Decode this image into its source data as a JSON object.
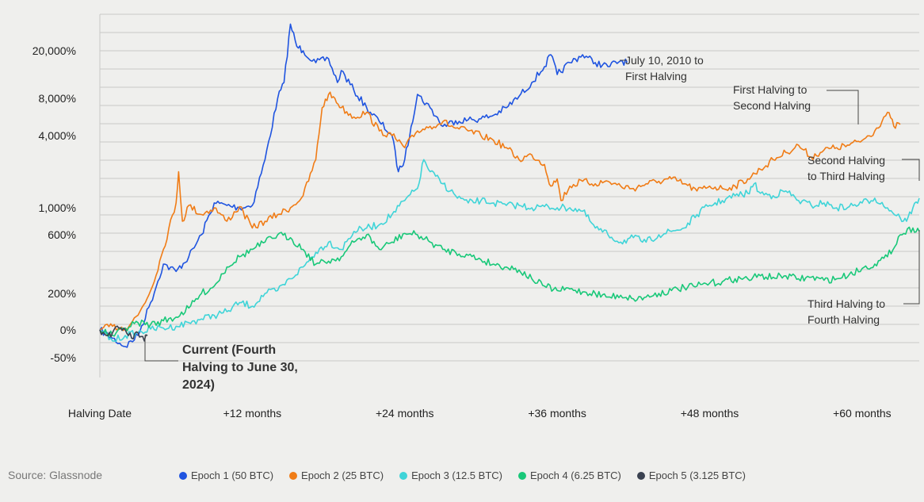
{
  "source": "Source: Glassnode",
  "chart_data": {
    "type": "line",
    "title": "",
    "xlabel": "",
    "ylabel": "",
    "x_unit": "months since halving",
    "xlim": [
      0,
      64.5
    ],
    "x_ticks": [
      {
        "value": 0,
        "label": "Halving Date"
      },
      {
        "value": 12,
        "label": "+12 months"
      },
      {
        "value": 24,
        "label": "+24 months"
      },
      {
        "value": 36,
        "label": "+36 months"
      },
      {
        "value": 48,
        "label": "+48 months"
      },
      {
        "value": 60,
        "label": "+60 months"
      }
    ],
    "y_scale": "log (return %, nonlinear)",
    "y_ticks": [
      {
        "value": 20000,
        "label": "20,000%"
      },
      {
        "value": 8000,
        "label": "8,000%"
      },
      {
        "value": 4000,
        "label": "4,000%"
      },
      {
        "value": 1000,
        "label": "1,000%"
      },
      {
        "value": 600,
        "label": "600%"
      },
      {
        "value": 200,
        "label": "200%"
      },
      {
        "value": 0,
        "label": "0%"
      },
      {
        "value": -50,
        "label": "-50%"
      }
    ],
    "grid": true,
    "legend_position": "bottom",
    "series": [
      {
        "name": "Epoch 1 (50 BTC)",
        "color": "#1f54e0",
        "points": [
          [
            0,
            0
          ],
          [
            1,
            -15
          ],
          [
            2,
            -30
          ],
          [
            3,
            -10
          ],
          [
            4,
            150
          ],
          [
            5,
            400
          ],
          [
            6,
            350
          ],
          [
            7,
            450
          ],
          [
            8,
            600
          ],
          [
            9,
            1200
          ],
          [
            10,
            1100
          ],
          [
            11,
            1000
          ],
          [
            12,
            1100
          ],
          [
            13,
            3000
          ],
          [
            14,
            8000
          ],
          [
            14.5,
            12000
          ],
          [
            15,
            32000
          ],
          [
            15.5,
            22000
          ],
          [
            16,
            20000
          ],
          [
            17,
            17000
          ],
          [
            18,
            18000
          ],
          [
            18.7,
            12000
          ],
          [
            19,
            15000
          ],
          [
            20,
            10000
          ],
          [
            21,
            7000
          ],
          [
            22,
            5500
          ],
          [
            23,
            4000
          ],
          [
            23.5,
            2500
          ],
          [
            24,
            3000
          ],
          [
            24.5,
            5000
          ],
          [
            25,
            9000
          ],
          [
            26,
            7000
          ],
          [
            27,
            5000
          ],
          [
            28,
            5600
          ],
          [
            29,
            5700
          ],
          [
            30,
            5800
          ],
          [
            31,
            6200
          ],
          [
            32,
            7000
          ],
          [
            33,
            8500
          ],
          [
            34,
            12000
          ],
          [
            35,
            16000
          ],
          [
            35.5,
            19000
          ],
          [
            36,
            14000
          ],
          [
            37,
            17000
          ],
          [
            38,
            19000
          ],
          [
            39,
            17000
          ],
          [
            40,
            16000
          ],
          [
            41,
            17500
          ],
          [
            41.5,
            17000
          ]
        ]
      },
      {
        "name": "Epoch 2 (25 BTC)",
        "color": "#f07c16",
        "points": [
          [
            0,
            0
          ],
          [
            1,
            20
          ],
          [
            2,
            10
          ],
          [
            3,
            80
          ],
          [
            4,
            220
          ],
          [
            5,
            500
          ],
          [
            6,
            1200
          ],
          [
            6.2,
            2500
          ],
          [
            6.5,
            800
          ],
          [
            7,
            1100
          ],
          [
            8,
            900
          ],
          [
            9,
            1000
          ],
          [
            10,
            800
          ],
          [
            11,
            1050
          ],
          [
            12,
            700
          ],
          [
            13,
            800
          ],
          [
            14,
            900
          ],
          [
            15,
            1000
          ],
          [
            16,
            1500
          ],
          [
            17,
            3000
          ],
          [
            17.5,
            7000
          ],
          [
            18,
            9000
          ],
          [
            18.5,
            8000
          ],
          [
            19,
            7000
          ],
          [
            20,
            6000
          ],
          [
            21,
            6500
          ],
          [
            22,
            4500
          ],
          [
            23,
            4000
          ],
          [
            24,
            3500
          ],
          [
            25,
            4500
          ],
          [
            26,
            5000
          ],
          [
            27,
            5500
          ],
          [
            28,
            4800
          ],
          [
            29,
            4500
          ],
          [
            30,
            4000
          ],
          [
            31,
            3800
          ],
          [
            32,
            3500
          ],
          [
            33,
            3000
          ],
          [
            34,
            3200
          ],
          [
            35,
            2800
          ],
          [
            35.5,
            1900
          ],
          [
            36,
            2200
          ],
          [
            36.3,
            1300
          ],
          [
            37,
            1900
          ],
          [
            38,
            2100
          ],
          [
            39,
            2000
          ],
          [
            40,
            2100
          ],
          [
            41,
            1900
          ],
          [
            42,
            1800
          ],
          [
            43,
            2000
          ],
          [
            44,
            2100
          ],
          [
            45,
            2200
          ],
          [
            46,
            2000
          ],
          [
            47,
            1700
          ],
          [
            48,
            1900
          ],
          [
            49,
            1800
          ],
          [
            50,
            1900
          ],
          [
            51,
            2200
          ],
          [
            52,
            2600
          ],
          [
            53,
            3000
          ],
          [
            54,
            3300
          ],
          [
            55,
            3600
          ],
          [
            56,
            3100
          ],
          [
            57,
            3400
          ],
          [
            58,
            3500
          ],
          [
            59,
            3600
          ],
          [
            60,
            3800
          ],
          [
            61,
            4500
          ],
          [
            62,
            6500
          ],
          [
            62.5,
            5000
          ],
          [
            63,
            5200
          ]
        ]
      },
      {
        "name": "Epoch 3 (12.5 BTC)",
        "color": "#3fd4d8",
        "points": [
          [
            0,
            0
          ],
          [
            1,
            -20
          ],
          [
            2,
            -10
          ],
          [
            3,
            -5
          ],
          [
            4,
            5
          ],
          [
            5,
            10
          ],
          [
            6,
            20
          ],
          [
            7,
            40
          ],
          [
            8,
            60
          ],
          [
            9,
            80
          ],
          [
            10,
            100
          ],
          [
            11,
            150
          ],
          [
            12,
            130
          ],
          [
            13,
            200
          ],
          [
            14,
            220
          ],
          [
            15,
            300
          ],
          [
            16,
            380
          ],
          [
            17,
            480
          ],
          [
            18,
            550
          ],
          [
            19,
            500
          ],
          [
            20,
            650
          ],
          [
            21,
            700
          ],
          [
            22,
            750
          ],
          [
            23,
            900
          ],
          [
            24,
            1300
          ],
          [
            25,
            1800
          ],
          [
            25.5,
            3000
          ],
          [
            26,
            2500
          ],
          [
            27,
            2000
          ],
          [
            28,
            1500
          ],
          [
            29,
            1200
          ],
          [
            30,
            1300
          ],
          [
            31,
            1200
          ],
          [
            32,
            1100
          ],
          [
            33,
            1100
          ],
          [
            34,
            1000
          ],
          [
            35,
            1050
          ],
          [
            36,
            1000
          ],
          [
            37,
            1000
          ],
          [
            38,
            950
          ],
          [
            39,
            700
          ],
          [
            40,
            600
          ],
          [
            41,
            550
          ],
          [
            42,
            580
          ],
          [
            43,
            550
          ],
          [
            44,
            600
          ],
          [
            45,
            650
          ],
          [
            46,
            700
          ],
          [
            47,
            900
          ],
          [
            48,
            1100
          ],
          [
            49,
            1300
          ],
          [
            50,
            1500
          ],
          [
            51,
            1600
          ],
          [
            51.5,
            2000
          ],
          [
            52,
            1600
          ],
          [
            53,
            1500
          ],
          [
            54,
            1700
          ],
          [
            55,
            1300
          ],
          [
            56,
            1100
          ],
          [
            57,
            1200
          ],
          [
            58,
            1000
          ],
          [
            59,
            1050
          ],
          [
            60,
            1200
          ],
          [
            61,
            1400
          ],
          [
            62,
            1000
          ],
          [
            63,
            850
          ],
          [
            63.5,
            800
          ],
          [
            64,
            1000
          ],
          [
            64.5,
            1400
          ]
        ]
      },
      {
        "name": "Epoch 4 (6.25 BTC)",
        "color": "#19c879",
        "points": [
          [
            0,
            0
          ],
          [
            1,
            -10
          ],
          [
            2,
            10
          ],
          [
            3,
            40
          ],
          [
            4,
            30
          ],
          [
            5,
            50
          ],
          [
            6,
            70
          ],
          [
            7,
            120
          ],
          [
            8,
            200
          ],
          [
            9,
            250
          ],
          [
            10,
            380
          ],
          [
            11,
            450
          ],
          [
            12,
            500
          ],
          [
            13,
            550
          ],
          [
            14,
            600
          ],
          [
            15,
            580
          ],
          [
            16,
            500
          ],
          [
            17,
            400
          ],
          [
            18,
            420
          ],
          [
            19,
            450
          ],
          [
            20,
            550
          ],
          [
            21,
            600
          ],
          [
            22,
            500
          ],
          [
            23,
            550
          ],
          [
            24,
            620
          ],
          [
            25,
            600
          ],
          [
            26,
            550
          ],
          [
            27,
            500
          ],
          [
            28,
            480
          ],
          [
            29,
            460
          ],
          [
            30,
            430
          ],
          [
            31,
            400
          ],
          [
            32,
            380
          ],
          [
            33,
            360
          ],
          [
            34,
            300
          ],
          [
            35,
            250
          ],
          [
            36,
            220
          ],
          [
            37,
            230
          ],
          [
            38,
            210
          ],
          [
            39,
            200
          ],
          [
            40,
            180
          ],
          [
            41,
            190
          ],
          [
            42,
            170
          ],
          [
            43,
            180
          ],
          [
            44,
            200
          ],
          [
            45,
            220
          ],
          [
            46,
            240
          ],
          [
            47,
            250
          ],
          [
            48,
            270
          ],
          [
            49,
            280
          ],
          [
            50,
            300
          ],
          [
            51,
            300
          ],
          [
            52,
            320
          ],
          [
            53,
            310
          ],
          [
            54,
            320
          ],
          [
            55,
            300
          ],
          [
            56,
            310
          ],
          [
            57,
            290
          ],
          [
            58,
            300
          ],
          [
            59,
            330
          ],
          [
            60,
            370
          ],
          [
            61,
            400
          ],
          [
            62,
            450
          ],
          [
            63,
            600
          ],
          [
            64,
            700
          ],
          [
            64.5,
            650
          ]
        ]
      },
      {
        "name": "Epoch 5 (3.125 BTC)",
        "color": "#3a4150",
        "points": [
          [
            0,
            0
          ],
          [
            0.5,
            -10
          ],
          [
            1,
            -5
          ],
          [
            1.5,
            10
          ],
          [
            2,
            0
          ],
          [
            2.5,
            -15
          ],
          [
            3,
            -5
          ],
          [
            3.5,
            -20
          ],
          [
            3.75,
            -10
          ]
        ]
      }
    ],
    "annotations": [
      {
        "text": "July 10, 2010 to First Halving",
        "series": "Epoch 1 (50 BTC)"
      },
      {
        "text": "First Halving to Second Halving",
        "series": "Epoch 2 (25 BTC)"
      },
      {
        "text": "Second Halving to Third Halving",
        "series": "Epoch 3 (12.5 BTC)"
      },
      {
        "text": "Third Halving to Fourth Halving",
        "series": "Epoch 4 (6.25 BTC)"
      },
      {
        "text": "Current (Fourth Halving to June 30, 2024)",
        "series": "Epoch 5 (3.125 BTC)"
      }
    ]
  }
}
